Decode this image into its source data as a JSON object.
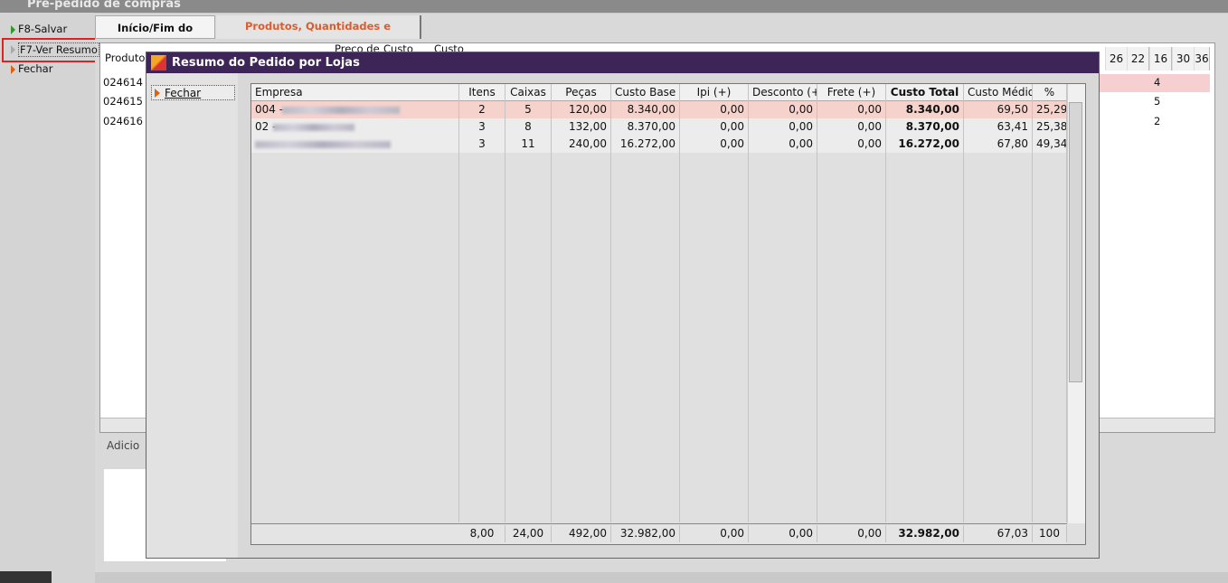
{
  "window": {
    "title": "Pré-pedido de compras"
  },
  "sidebar": {
    "buttons": [
      "F8-Salvar",
      "F7-Ver Resumo",
      "Fechar"
    ]
  },
  "tabs": [
    "Início/Fim do Pedido",
    "Produtos, Quantidades e Distribuição"
  ],
  "background_grid": {
    "headers": [
      "Produto",
      "Preço de",
      "Custo",
      "Custo"
    ],
    "right_headers": [
      "26",
      "22",
      "16",
      "30",
      "36"
    ],
    "rows": [
      "024614",
      "024615",
      "024616"
    ],
    "right_values": [
      "4",
      "5",
      "2"
    ],
    "add_button": "Adicio"
  },
  "modal": {
    "title": "Resumo do Pedido por Lojas",
    "close_button": "Fechar",
    "table": {
      "headers": [
        "Empresa",
        "Itens",
        "Caixas",
        "Peças",
        "Custo Base",
        "Ipi (+)",
        "Desconto (+-)",
        "Frete (+)",
        "Custo Total",
        "Custo Médio",
        "%"
      ],
      "rows": [
        {
          "empresa": "004 -",
          "cells": [
            "2",
            "5",
            "120,00",
            "8.340,00",
            "0,00",
            "0,00",
            "0,00",
            "8.340,00",
            "69,50",
            "25,29"
          ]
        },
        {
          "empresa": "02 -",
          "cells": [
            "3",
            "8",
            "132,00",
            "8.370,00",
            "0,00",
            "0,00",
            "0,00",
            "8.370,00",
            "63,41",
            "25,38"
          ]
        },
        {
          "cells": [
            "3",
            "11",
            "240,00",
            "16.272,00",
            "0,00",
            "0,00",
            "0,00",
            "16.272,00",
            "67,80",
            "49,34"
          ]
        }
      ],
      "totals": [
        "8,00",
        "24,00",
        "492,00",
        "32.982,00",
        "0,00",
        "0,00",
        "0,00",
        "32.982,00",
        "67,03",
        "100"
      ]
    }
  }
}
